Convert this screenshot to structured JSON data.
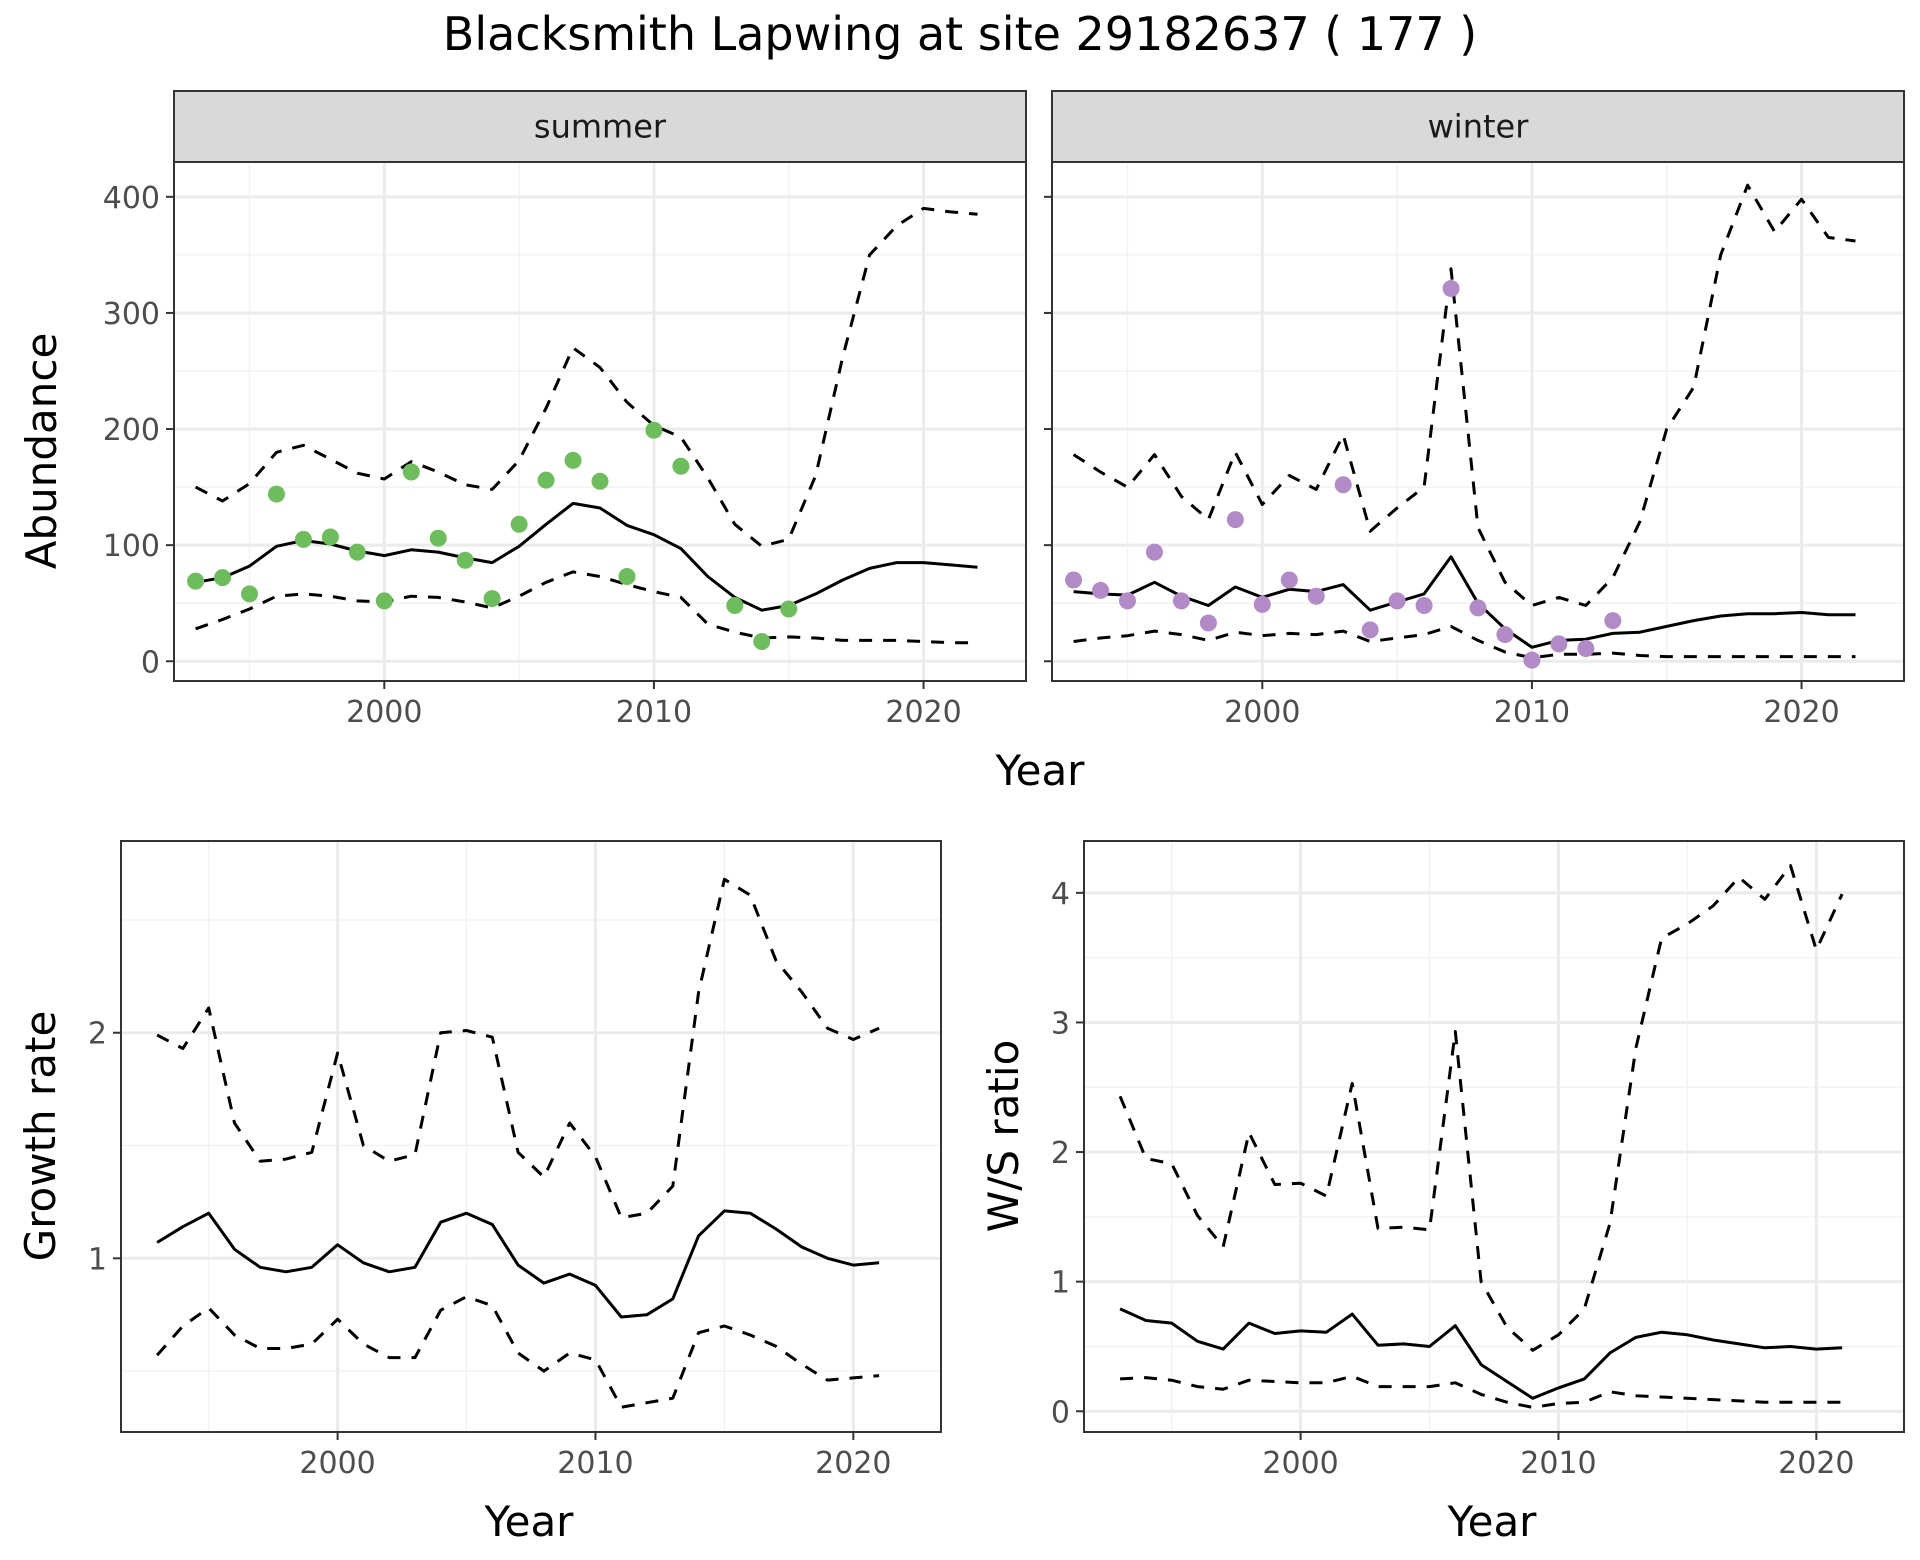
{
  "title": "Blacksmith Lapwing at site 29182637 ( 177 )",
  "chart_data": [
    {
      "type": "line",
      "facet": "summer",
      "strip_label": "summer",
      "xlabel": "Year",
      "ylabel": "Abundance",
      "xlim": [
        1992.2,
        2023.8
      ],
      "ylim": [
        -17,
        430
      ],
      "x_ticks": [
        2000,
        2010,
        2020
      ],
      "x_tick_labels": [
        "2000",
        "2010",
        "2020"
      ],
      "y_ticks": [
        0,
        100,
        200,
        300,
        400
      ],
      "y_tick_labels": [
        "0",
        "100",
        "200",
        "300",
        "400"
      ],
      "grid": true,
      "series": [
        {
          "role": "estimate",
          "style": "solid",
          "color": "#000000",
          "x": [
            1993,
            1994,
            1995,
            1996,
            1997,
            1998,
            1999,
            2000,
            2001,
            2002,
            2003,
            2004,
            2005,
            2006,
            2007,
            2008,
            2009,
            2010,
            2011,
            2012,
            2013,
            2014,
            2015,
            2016,
            2017,
            2018,
            2019,
            2020,
            2021,
            2022
          ],
          "y": [
            68,
            72,
            82,
            99,
            104,
            101,
            95,
            91,
            96,
            94,
            89,
            85,
            99,
            118,
            136,
            132,
            117,
            109,
            97,
            73,
            55,
            44,
            48,
            58,
            70,
            80,
            85,
            85,
            83,
            81
          ]
        },
        {
          "role": "upper",
          "style": "dashed",
          "color": "#000000",
          "x": [
            1993,
            1994,
            1995,
            1996,
            1997,
            1998,
            1999,
            2000,
            2001,
            2002,
            2003,
            2004,
            2005,
            2006,
            2007,
            2008,
            2009,
            2010,
            2011,
            2012,
            2013,
            2014,
            2015,
            2016,
            2017,
            2018,
            2019,
            2020,
            2021,
            2022
          ],
          "y": [
            150,
            138,
            153,
            180,
            186,
            174,
            162,
            157,
            172,
            163,
            152,
            148,
            173,
            218,
            270,
            253,
            223,
            203,
            193,
            158,
            118,
            99,
            105,
            160,
            262,
            350,
            375,
            390,
            387,
            385
          ]
        },
        {
          "role": "lower",
          "style": "dashed",
          "color": "#000000",
          "x": [
            1993,
            1994,
            1995,
            1996,
            1997,
            1998,
            1999,
            2000,
            2001,
            2002,
            2003,
            2004,
            2005,
            2006,
            2007,
            2008,
            2009,
            2010,
            2011,
            2012,
            2013,
            2014,
            2015,
            2016,
            2017,
            2018,
            2019,
            2020,
            2021,
            2022
          ],
          "y": [
            28,
            36,
            45,
            56,
            58,
            56,
            52,
            51,
            56,
            55,
            51,
            46,
            56,
            68,
            77,
            73,
            66,
            60,
            55,
            32,
            25,
            20,
            21,
            20,
            18,
            18,
            18,
            17,
            16,
            16
          ]
        }
      ],
      "points": {
        "color": "#6ebd5c",
        "x": [
          1993,
          1994,
          1995,
          1996,
          1997,
          1998,
          1999,
          2000,
          2001,
          2002,
          2003,
          2004,
          2005,
          2006,
          2007,
          2008,
          2009,
          2010,
          2011,
          2013,
          2014,
          2015
        ],
        "y": [
          69,
          72,
          58,
          144,
          105,
          107,
          94,
          52,
          163,
          106,
          87,
          54,
          118,
          156,
          173,
          155,
          73,
          199,
          168,
          48,
          17,
          45
        ]
      }
    },
    {
      "type": "line",
      "facet": "winter",
      "strip_label": "winter",
      "xlabel": "Year",
      "ylabel": "Abundance",
      "xlim": [
        1992.2,
        2023.8
      ],
      "ylim": [
        -17,
        430
      ],
      "x_ticks": [
        2000,
        2010,
        2020
      ],
      "x_tick_labels": [
        "2000",
        "2010",
        "2020"
      ],
      "y_ticks": [
        0,
        100,
        200,
        300,
        400
      ],
      "grid": true,
      "series": [
        {
          "role": "estimate",
          "style": "solid",
          "color": "#000000",
          "x": [
            1993,
            1994,
            1995,
            1996,
            1997,
            1998,
            1999,
            2000,
            2001,
            2002,
            2003,
            2004,
            2005,
            2006,
            2007,
            2008,
            2009,
            2010,
            2011,
            2012,
            2013,
            2014,
            2015,
            2016,
            2017,
            2018,
            2019,
            2020,
            2021,
            2022
          ],
          "y": [
            60,
            58,
            57,
            68,
            56,
            48,
            64,
            55,
            62,
            60,
            66,
            44,
            51,
            58,
            90,
            50,
            28,
            12,
            18,
            19,
            24,
            25,
            30,
            35,
            39,
            41,
            41,
            42,
            40,
            40
          ]
        },
        {
          "role": "upper",
          "style": "dashed",
          "color": "#000000",
          "x": [
            1993,
            1994,
            1995,
            1996,
            1997,
            1998,
            1999,
            2000,
            2001,
            2002,
            2003,
            2004,
            2005,
            2006,
            2007,
            2008,
            2009,
            2010,
            2011,
            2012,
            2013,
            2014,
            2015,
            2016,
            2017,
            2018,
            2019,
            2020,
            2021,
            2022
          ],
          "y": [
            178,
            163,
            150,
            178,
            142,
            122,
            180,
            135,
            160,
            148,
            195,
            112,
            132,
            150,
            338,
            115,
            68,
            48,
            55,
            48,
            72,
            120,
            200,
            236,
            350,
            410,
            370,
            398,
            365,
            362
          ]
        },
        {
          "role": "lower",
          "style": "dashed",
          "color": "#000000",
          "x": [
            1993,
            1994,
            1995,
            1996,
            1997,
            1998,
            1999,
            2000,
            2001,
            2002,
            2003,
            2004,
            2005,
            2006,
            2007,
            2008,
            2009,
            2010,
            2011,
            2012,
            2013,
            2014,
            2015,
            2016,
            2017,
            2018,
            2019,
            2020,
            2021,
            2022
          ],
          "y": [
            17,
            20,
            22,
            26,
            23,
            18,
            25,
            22,
            24,
            23,
            26,
            17,
            20,
            23,
            30,
            18,
            8,
            3,
            6,
            6,
            7,
            5,
            4,
            4,
            4,
            4,
            4,
            4,
            4,
            4
          ]
        }
      ],
      "points": {
        "color": "#b28ac7",
        "x": [
          1993,
          1994,
          1995,
          1996,
          1997,
          1998,
          1999,
          2000,
          2001,
          2002,
          2003,
          2004,
          2005,
          2006,
          2007,
          2008,
          2009,
          2010,
          2011,
          2012,
          2013
        ],
        "y": [
          70,
          61,
          52,
          94,
          52,
          33,
          122,
          49,
          70,
          56,
          152,
          27,
          52,
          48,
          321,
          46,
          23,
          1,
          15,
          11,
          35
        ]
      }
    },
    {
      "type": "line",
      "xlabel": "Year",
      "ylabel": "Growth rate",
      "xlim": [
        1991.6,
        2023.4
      ],
      "ylim": [
        0.23,
        2.85
      ],
      "x_ticks": [
        2000,
        2010,
        2020
      ],
      "x_tick_labels": [
        "2000",
        "2010",
        "2020"
      ],
      "y_ticks": [
        1,
        2
      ],
      "y_tick_labels": [
        "1",
        "2"
      ],
      "grid": true,
      "series": [
        {
          "role": "estimate",
          "style": "solid",
          "color": "#000000",
          "x": [
            1993,
            1994,
            1995,
            1996,
            1997,
            1998,
            1999,
            2000,
            2001,
            2002,
            2003,
            2004,
            2005,
            2006,
            2007,
            2008,
            2009,
            2010,
            2011,
            2012,
            2013,
            2014,
            2015,
            2016,
            2017,
            2018,
            2019,
            2020,
            2021
          ],
          "y": [
            1.07,
            1.14,
            1.2,
            1.04,
            0.96,
            0.94,
            0.96,
            1.06,
            0.98,
            0.94,
            0.96,
            1.16,
            1.2,
            1.15,
            0.97,
            0.89,
            0.93,
            0.88,
            0.74,
            0.75,
            0.82,
            1.1,
            1.21,
            1.2,
            1.13,
            1.05,
            1.0,
            0.97,
            0.98
          ]
        },
        {
          "role": "upper",
          "style": "dashed",
          "color": "#000000",
          "x": [
            1993,
            1994,
            1995,
            1996,
            1997,
            1998,
            1999,
            2000,
            2001,
            2002,
            2003,
            2004,
            2005,
            2006,
            2007,
            2008,
            2009,
            2010,
            2011,
            2012,
            2013,
            2014,
            2015,
            2016,
            2017,
            2018,
            2019,
            2020,
            2021
          ],
          "y": [
            1.99,
            1.93,
            2.11,
            1.6,
            1.43,
            1.44,
            1.47,
            1.91,
            1.5,
            1.43,
            1.46,
            2.0,
            2.01,
            1.98,
            1.47,
            1.36,
            1.6,
            1.45,
            1.18,
            1.2,
            1.32,
            2.18,
            2.68,
            2.61,
            2.32,
            2.18,
            2.02,
            1.97,
            2.02
          ]
        },
        {
          "role": "lower",
          "style": "dashed",
          "color": "#000000",
          "x": [
            1993,
            1994,
            1995,
            1996,
            1997,
            1998,
            1999,
            2000,
            2001,
            2002,
            2003,
            2004,
            2005,
            2006,
            2007,
            2008,
            2009,
            2010,
            2011,
            2012,
            2013,
            2014,
            2015,
            2016,
            2017,
            2018,
            2019,
            2020,
            2021
          ],
          "y": [
            0.57,
            0.7,
            0.78,
            0.66,
            0.6,
            0.6,
            0.62,
            0.73,
            0.62,
            0.56,
            0.56,
            0.77,
            0.83,
            0.79,
            0.58,
            0.5,
            0.58,
            0.55,
            0.34,
            0.36,
            0.38,
            0.67,
            0.7,
            0.66,
            0.61,
            0.53,
            0.46,
            0.47,
            0.48
          ]
        }
      ]
    },
    {
      "type": "line",
      "xlabel": "Year",
      "ylabel": "W/S ratio",
      "xlim": [
        1991.6,
        2023.4
      ],
      "ylim": [
        -0.16,
        4.4
      ],
      "x_ticks": [
        2000,
        2010,
        2020
      ],
      "x_tick_labels": [
        "2000",
        "2010",
        "2020"
      ],
      "y_ticks": [
        0,
        1,
        2,
        3,
        4
      ],
      "y_tick_labels": [
        "0",
        "1",
        "2",
        "3",
        "4"
      ],
      "grid": true,
      "series": [
        {
          "role": "estimate",
          "style": "solid",
          "color": "#000000",
          "x": [
            1993,
            1994,
            1995,
            1996,
            1997,
            1998,
            1999,
            2000,
            2001,
            2002,
            2003,
            2004,
            2005,
            2006,
            2007,
            2008,
            2009,
            2010,
            2011,
            2012,
            2013,
            2014,
            2015,
            2016,
            2017,
            2018,
            2019,
            2020,
            2021
          ],
          "y": [
            0.79,
            0.7,
            0.68,
            0.54,
            0.48,
            0.68,
            0.6,
            0.62,
            0.61,
            0.75,
            0.51,
            0.52,
            0.5,
            0.66,
            0.36,
            0.23,
            0.1,
            0.18,
            0.25,
            0.45,
            0.57,
            0.61,
            0.59,
            0.55,
            0.52,
            0.49,
            0.5,
            0.48,
            0.49
          ]
        },
        {
          "role": "upper",
          "style": "dashed",
          "color": "#000000",
          "x": [
            1993,
            1994,
            1995,
            1996,
            1997,
            1998,
            1999,
            2000,
            2001,
            2002,
            2003,
            2004,
            2005,
            2006,
            2007,
            2008,
            2009,
            2010,
            2011,
            2012,
            2013,
            2014,
            2015,
            2016,
            2017,
            2018,
            2019,
            2020,
            2021
          ],
          "y": [
            2.43,
            1.95,
            1.91,
            1.51,
            1.27,
            2.15,
            1.75,
            1.76,
            1.66,
            2.53,
            1.41,
            1.42,
            1.4,
            2.93,
            1.0,
            0.65,
            0.47,
            0.59,
            0.79,
            1.45,
            2.8,
            3.65,
            3.76,
            3.9,
            4.12,
            3.95,
            4.21,
            3.56,
            3.99
          ]
        },
        {
          "role": "lower",
          "style": "dashed",
          "color": "#000000",
          "x": [
            1993,
            1994,
            1995,
            1996,
            1997,
            1998,
            1999,
            2000,
            2001,
            2002,
            2003,
            2004,
            2005,
            2006,
            2007,
            2008,
            2009,
            2010,
            2011,
            2012,
            2013,
            2014,
            2015,
            2016,
            2017,
            2018,
            2019,
            2020,
            2021
          ],
          "y": [
            0.25,
            0.26,
            0.24,
            0.19,
            0.17,
            0.24,
            0.23,
            0.22,
            0.22,
            0.27,
            0.19,
            0.19,
            0.19,
            0.22,
            0.13,
            0.07,
            0.03,
            0.06,
            0.07,
            0.15,
            0.12,
            0.11,
            0.1,
            0.09,
            0.08,
            0.07,
            0.07,
            0.07,
            0.07
          ]
        }
      ]
    }
  ]
}
